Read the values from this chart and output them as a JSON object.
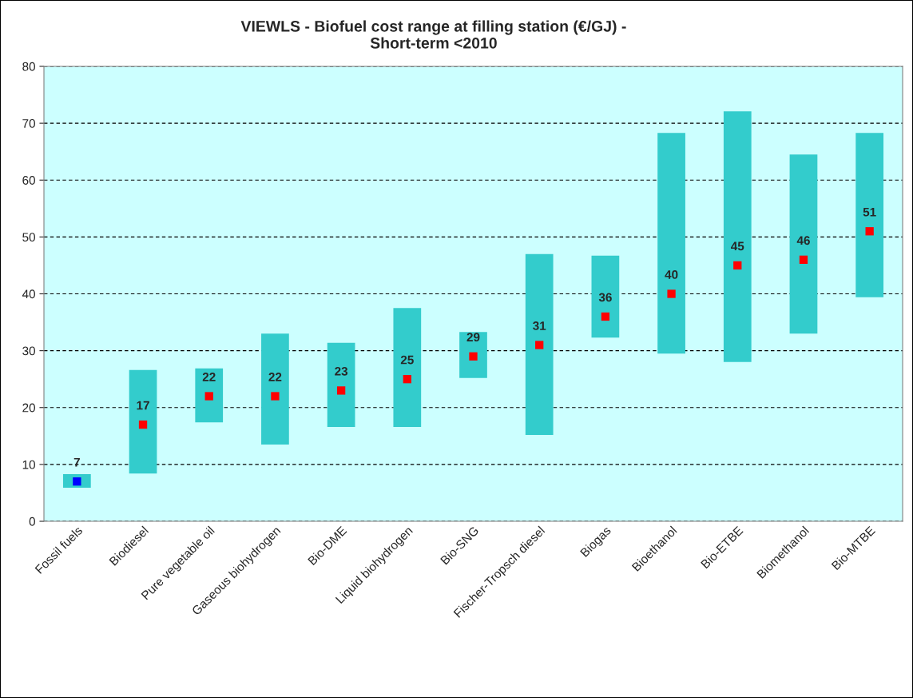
{
  "chart_data": {
    "type": "bar",
    "title": "VIEWLS - Biofuel cost range at filling station (€/GJ) -\nShort-term <2010",
    "categories": [
      "Fossil fuels",
      "Biodiesel",
      "Pure vegetable oil",
      "Gaseous biohydrogen",
      "Bio-DME",
      "Liquid biohydrogen",
      "Bio-SNG",
      "Fischer-Tropsch diesel",
      "Biogas",
      "Bioethanol",
      "Bio-ETBE",
      "Biomethanol",
      "Bio-MTBE"
    ],
    "series": [
      {
        "color": "#33cccc",
        "base": [
          5.9,
          8.4,
          17.4,
          13.5,
          16.6,
          16.6,
          25.2,
          15.2,
          32.3,
          29.5,
          28.0,
          33.0,
          39.4
        ],
        "values": [
          2.4,
          18.2,
          9.5,
          19.5,
          14.8,
          20.9,
          8.1,
          31.8,
          14.4,
          38.8,
          44.1,
          31.5,
          28.9
        ]
      },
      {
        "type": "scatter",
        "marker": "square",
        "colors": [
          "#0000ff",
          "#ff0000",
          "#ff0000",
          "#ff0000",
          "#ff0000",
          "#ff0000",
          "#ff0000",
          "#ff0000",
          "#ff0000",
          "#ff0000",
          "#ff0000",
          "#ff0000",
          "#ff0000"
        ],
        "values": [
          7,
          17,
          22,
          22,
          23,
          25,
          29,
          31,
          36,
          40,
          45,
          46,
          51
        ],
        "data_labels": true
      }
    ],
    "ylim": [
      0,
      80
    ],
    "yticks": [
      0,
      10,
      20,
      30,
      40,
      50,
      60,
      70,
      80
    ],
    "grid": "y",
    "legend": false
  }
}
